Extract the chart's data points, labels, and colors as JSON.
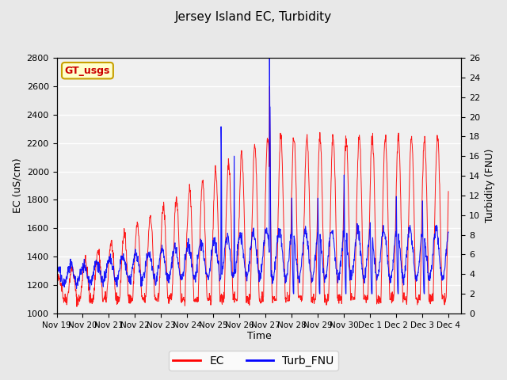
{
  "title": "Jersey Island EC, Turbidity",
  "xlabel": "Time",
  "ylabel_left": "EC (uS/cm)",
  "ylabel_right": "Turbidity (FNU)",
  "ylim_left": [
    1000,
    2800
  ],
  "ylim_right": [
    0,
    26
  ],
  "yticks_left": [
    1000,
    1200,
    1400,
    1600,
    1800,
    2000,
    2200,
    2400,
    2600,
    2800
  ],
  "yticks_right": [
    0,
    2,
    4,
    6,
    8,
    10,
    12,
    14,
    16,
    18,
    20,
    22,
    24,
    26
  ],
  "xtick_positions": [
    0,
    1,
    2,
    3,
    4,
    5,
    6,
    7,
    8,
    9,
    10,
    11,
    12,
    13,
    14,
    15
  ],
  "xtick_labels": [
    "Nov 19",
    "Nov 20",
    "Nov 21",
    "Nov 22",
    "Nov 23",
    "Nov 24",
    "Nov 25",
    "Nov 26",
    "Nov 27",
    "Nov 28",
    "Nov 29",
    "Nov 30",
    "Dec 1",
    "Dec 2",
    "Dec 3",
    "Dec 4"
  ],
  "xlim": [
    0,
    15.5
  ],
  "legend_labels": [
    "EC",
    "Turb_FNU"
  ],
  "ec_color": "red",
  "turb_color": "blue",
  "background_color": "#e8e8e8",
  "plot_bg_color": "#f0f0f0",
  "watermark_text": "GT_usgs",
  "watermark_bg": "#ffffcc",
  "watermark_border": "#c8a000",
  "watermark_text_color": "#cc0000"
}
